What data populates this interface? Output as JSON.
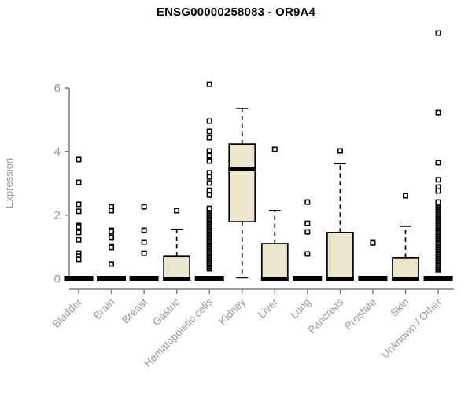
{
  "chart_data": {
    "type": "boxplot",
    "title": "ENSG00000258083 - OR9A4",
    "ylabel": "Expression",
    "xlabel": "",
    "y_ticks": [
      0,
      2,
      4,
      6
    ],
    "ylim": [
      0,
      6
    ],
    "grid": "off",
    "legend": "none",
    "colors": {
      "box_fill": "#ECE6CD",
      "box_stroke": "#000000",
      "median": "#000000",
      "axis": "#7d7d7d",
      "tick_label": "#9a9a9a",
      "title": "#000000",
      "background": "#ffffff"
    },
    "categories": [
      "Bladder",
      "Brain",
      "Breast",
      "Gastric",
      "Hematopoietic cells",
      "Kidney",
      "Liver",
      "Lung",
      "Pancreas",
      "Prostate",
      "Skin",
      "Unknown / Other"
    ],
    "series": [
      {
        "category": "Bladder",
        "q1": 0,
        "median": 0,
        "q3": 0,
        "whisker_low": 0,
        "whisker_high": 0,
        "outliers": [
          3.75,
          3.03,
          2.34,
          2.12,
          1.67,
          1.63,
          1.45,
          1.22,
          0.8,
          0.71,
          0.61
        ]
      },
      {
        "category": "Brain",
        "q1": 0,
        "median": 0,
        "q3": 0,
        "whisker_low": 0,
        "whisker_high": 0,
        "outliers": [
          2.26,
          2.14,
          1.52,
          1.48,
          1.3,
          1.02,
          0.98,
          0.46
        ]
      },
      {
        "category": "Breast",
        "q1": 0,
        "median": 0,
        "q3": 0,
        "whisker_low": 0,
        "whisker_high": 0,
        "outliers": [
          2.26,
          1.52,
          1.15,
          0.8
        ]
      },
      {
        "category": "Gastric",
        "q1": 0,
        "median": 0,
        "q3": 0.7,
        "whisker_low": 0,
        "whisker_high": 1.55,
        "outliers": [
          2.14
        ]
      },
      {
        "category": "Hematopoietic cells",
        "q1": 0,
        "median": 0,
        "q3": 0,
        "whisker_low": 0,
        "whisker_high": 0,
        "outliers": [
          6.12,
          4.96,
          4.64,
          4.44,
          4.02,
          3.87,
          3.7,
          3.33,
          3.2,
          3.01,
          2.78,
          2.63
        ],
        "outlier_band": {
          "min": 0.31,
          "max": 2.21,
          "count": 45
        }
      },
      {
        "category": "Kidney",
        "q1": 1.79,
        "median": 3.44,
        "q3": 4.24,
        "whisker_low": 0.03,
        "whisker_high": 5.36,
        "outliers": []
      },
      {
        "category": "Liver",
        "q1": 0,
        "median": 0,
        "q3": 1.1,
        "whisker_low": 0,
        "whisker_high": 2.14,
        "outliers": [
          4.07
        ]
      },
      {
        "category": "Lung",
        "q1": 0,
        "median": 0,
        "q3": 0,
        "whisker_low": 0,
        "whisker_high": 0,
        "outliers": [
          2.41,
          1.74,
          1.47,
          0.78
        ]
      },
      {
        "category": "Pancreas",
        "q1": 0,
        "median": 0,
        "q3": 1.45,
        "whisker_low": 0,
        "whisker_high": 3.62,
        "outliers": [
          4.02
        ]
      },
      {
        "category": "Prostate",
        "q1": 0,
        "median": 0,
        "q3": 0,
        "whisker_low": 0,
        "whisker_high": 0,
        "outliers": [
          1.15,
          1.12
        ]
      },
      {
        "category": "Skin",
        "q1": 0,
        "median": 0,
        "q3": 0.66,
        "whisker_low": 0,
        "whisker_high": 1.65,
        "outliers": [
          2.61
        ]
      },
      {
        "category": "Unknown / Other",
        "q1": 0,
        "median": 0,
        "q3": 0,
        "whisker_low": 0,
        "whisker_high": 0,
        "outliers": [
          7.73,
          5.23,
          3.65,
          3.11,
          2.88,
          2.76
        ],
        "outlier_band": {
          "min": 0.28,
          "max": 2.41,
          "count": 50
        }
      }
    ]
  }
}
